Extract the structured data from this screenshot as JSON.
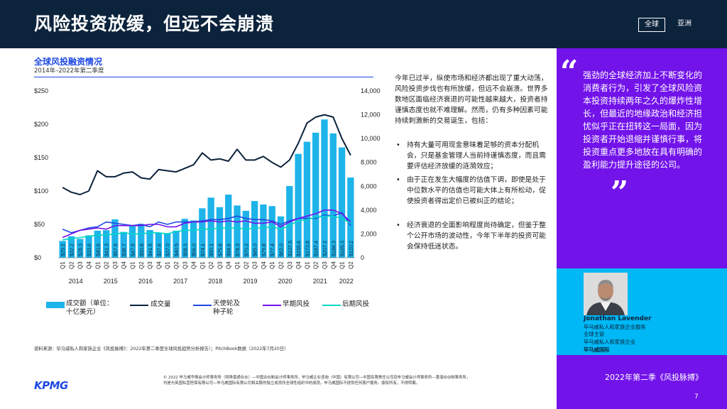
{
  "header": {
    "title": "风险投资放缓，但远不会崩溃",
    "tab_global": "全球",
    "tab_asia": "亚洲"
  },
  "chart_title": "全球风投融资情况",
  "chart_subtitle": "2014年–2022年第二季度",
  "chart_data": {
    "type": "bar",
    "categories": [
      "Q1",
      "Q2",
      "Q3",
      "Q4",
      "Q1",
      "Q2",
      "Q3",
      "Q4",
      "Q1",
      "Q2",
      "Q3",
      "Q4",
      "Q1",
      "Q2",
      "Q3",
      "Q4",
      "Q1",
      "Q2",
      "Q3",
      "Q4",
      "Q1",
      "Q2",
      "Q3",
      "Q4",
      "Q1",
      "Q2",
      "Q3",
      "Q4",
      "Q1",
      "Q2",
      "Q3",
      "Q4",
      "Q1",
      "Q2"
    ],
    "years": [
      "2014",
      "2015",
      "2016",
      "2017",
      "2018",
      "2019",
      "2020",
      "2021",
      "2022"
    ],
    "value_labels": [
      "$25.2",
      "$32.2",
      "$28.3",
      "$33.6",
      "$40.6",
      "$41.3",
      "$57.5",
      "$38.7",
      "$47.9",
      "$50.8",
      "$41.5",
      "$37.6",
      "$37.0",
      "$40.5",
      "$58.3",
      "$56.0",
      "$74.1",
      "$90.1",
      "$75.8",
      "$94.6",
      "$78.3",
      "$70.3",
      "$85.0",
      "$79.8",
      "$77.4",
      "$62.0",
      "$107.5",
      "$155.6",
      "$173.8",
      "$187.4",
      "$207.2",
      "$186.3",
      "$165.3",
      "$120.2"
    ],
    "series": [
      {
        "name": "成交额（单位：十亿美元）",
        "type": "bar",
        "axis": "left",
        "values": [
          25.2,
          32.2,
          28.3,
          33.6,
          40.6,
          41.3,
          57.5,
          38.7,
          47.9,
          50.8,
          41.5,
          37.6,
          37.0,
          40.5,
          58.3,
          56.0,
          74.1,
          90.1,
          75.8,
          94.6,
          78.3,
          70.3,
          85.0,
          79.8,
          77.4,
          62.0,
          107.5,
          155.6,
          173.8,
          187.4,
          207.2,
          186.3,
          165.3,
          120.2
        ]
      },
      {
        "name": "成交量",
        "type": "line",
        "axis": "right",
        "values": [
          5900,
          5500,
          5300,
          5600,
          7300,
          6800,
          6800,
          7100,
          7200,
          6700,
          6600,
          7400,
          7300,
          7200,
          7500,
          7800,
          8800,
          8200,
          8300,
          8100,
          9100,
          8200,
          8200,
          8500,
          8000,
          7600,
          8200,
          9600,
          11300,
          11800,
          12000,
          11800,
          10000,
          8600
        ]
      },
      {
        "name": "天使轮及种子轮",
        "type": "line",
        "axis": "right",
        "values": [
          2400,
          2100,
          2300,
          2500,
          2600,
          3000,
          2900,
          2800,
          2700,
          2800,
          2600,
          3000,
          2800,
          3000,
          3000,
          3000,
          3100,
          3200,
          3200,
          3300,
          3500,
          3300,
          3200,
          3200,
          3100,
          2800,
          3100,
          3300,
          3300,
          3300,
          3600,
          3500,
          3800,
          2700
        ]
      },
      {
        "name": "早期风投",
        "type": "line",
        "axis": "right",
        "values": [
          1700,
          2000,
          2300,
          2400,
          2500,
          2400,
          2700,
          2700,
          2700,
          2700,
          2800,
          2800,
          2600,
          2600,
          2900,
          3000,
          3000,
          3100,
          3000,
          3100,
          3000,
          3100,
          2900,
          2900,
          3000,
          2600,
          3000,
          3300,
          3500,
          3700,
          4000,
          4000,
          3700,
          3000
        ]
      },
      {
        "name": "后期风投",
        "type": "line",
        "axis": "right",
        "values": [
          1500,
          1600,
          1700,
          1800,
          1900,
          1900,
          2000,
          2100,
          2000,
          2000,
          2100,
          2100,
          2000,
          2200,
          2300,
          2300,
          2400,
          2400,
          2500,
          2500,
          2500,
          2400,
          2500,
          2500,
          2600,
          2400,
          2700,
          3100,
          3200,
          3400,
          3500,
          3500,
          3300,
          2900
        ]
      }
    ],
    "left_ticks": [
      "$0",
      "$50",
      "$100",
      "$150",
      "$200",
      "$250"
    ],
    "right_ticks": [
      "0",
      "2,000",
      "4,000",
      "6,000",
      "8,000",
      "10,000",
      "12,000",
      "14,000"
    ],
    "ylim_left": [
      0,
      250
    ],
    "ylim_right": [
      0,
      14000
    ],
    "colors": {
      "bars": "#1eb4ea",
      "volume": "#0c233c",
      "angel": "#1e49e2",
      "early": "#7213ea",
      "late": "#00d7c4"
    }
  },
  "legend": {
    "bars_line1": "成交额（单位：",
    "bars_line2": "十亿美元）",
    "volume": "成交量",
    "angel_line1": "天使轮及",
    "angel_line2": "种子轮",
    "early": "早期风投",
    "late": "后期风投"
  },
  "source": "资料来源：毕马威私人和家族企业《风投脉搏》：2022年第二季度全球风投趋势分析报告）；PitchBook数据（2022年7月20日）",
  "body": {
    "intro": "今年已过半，纵使市场和经济都出现了重大动荡，风险投资步伐也有所放缓，但远不会崩溃。世界多数地区面临经济衰退的可能性越来越大，投资者持谨慎态度也就不难理解。然而，仍有多种因素可能持续刺激新的交易诞生，包括：",
    "bullets": [
      "持有大量可用现金意味着足够的资本分配机会，只是基金管理人当前持谨慎态度，而且需要评估经济放缓的涟漪效应；",
      "由于正在发生大幅度的估值下调，即使是处于中位数水平的估值也可能大体上有所松动，促使投资者得出定价已被纠正的结论；",
      "经济衰退的全面影响程度尚待确定，但鉴于整个公开市场的波动性，今年下半年的投资可能会保持低迷状态。"
    ]
  },
  "quote": {
    "open_mark": "“",
    "text": "强劲的全球经济加上不断变化的消费者行为，引发了全球风险资本投资持续两年之久的爆炸性增长，但最近的地缘政治和经济担忧似乎正在扭转这一局面，因为投资者开始退缩并谨慎行事，将投资重点更多地放在具有明确的盈利能力提升途径的公司。",
    "close_mark": "”"
  },
  "person": {
    "name": "Jonathan Lavender",
    "line1": "毕马威私人和家族企业服务",
    "line2": "全球主管",
    "line3": "毕马威私人和家族企业",
    "org": "毕马威国际"
  },
  "report": {
    "name": "2022年第二季《风投脉搏》",
    "page": "7"
  },
  "logo": "KPMG",
  "footer": {
    "line1": "© 2022 毕马威华振会计师事务所（特殊普通合伙）—中国合伙制会计师事务所，毕马威企业咨询（中国）有限公司—中国有限责任公司及毕马威会计师事务所—香港合伙制事务所，",
    "line2": "均是与英国私营担保有限公司—毕马威国际有限公司相关联的独立成员所全球性组织中的成员。毕马威国际不提供任何客户服务。版权所有，不得转载。"
  }
}
